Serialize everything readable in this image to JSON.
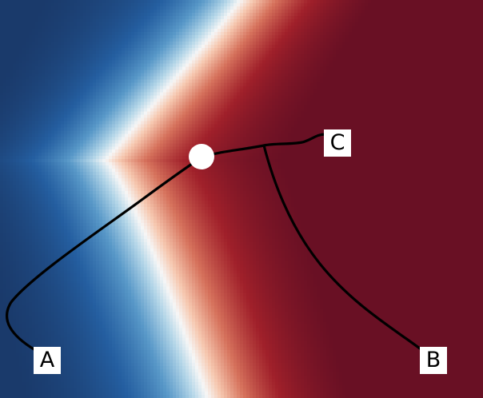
{
  "labels": {
    "a": "A",
    "b": "B",
    "c": "C"
  },
  "colors": {
    "path": "#000000",
    "node": "#ffffff",
    "colormap_low": "#1a3a6b",
    "colormap_mid": "#f5f5f5",
    "colormap_high": "#6b0f22"
  }
}
